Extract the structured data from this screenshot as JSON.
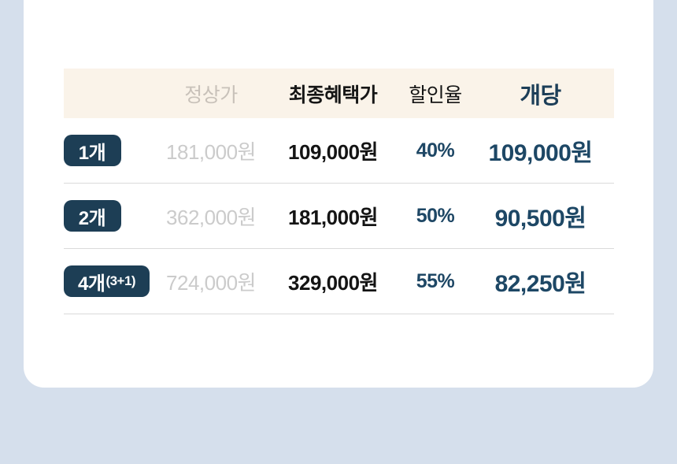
{
  "colors": {
    "page_background": "#d5dfec",
    "card_background": "#ffffff",
    "header_band_background": "#faf3e9",
    "badge_navy": "#1d3e55",
    "accent_navy": "#1e4765",
    "muted_gray": "#cbcbcb",
    "text_black": "#141414"
  },
  "table": {
    "headers": {
      "regular_price": "정상가",
      "final_benefit_price": "최종혜택가",
      "discount_rate": "할인율",
      "per_unit": "개당"
    },
    "rows": [
      {
        "qty": "1개",
        "qty_note": "",
        "regular_price": "181,000원",
        "final_price": "109,000원",
        "discount": "40%",
        "per_unit_price": "109,000원"
      },
      {
        "qty": "2개",
        "qty_note": "",
        "regular_price": "362,000원",
        "final_price": "181,000원",
        "discount": "50%",
        "per_unit_price": "90,500원"
      },
      {
        "qty": "4개",
        "qty_note": "(3+1)",
        "regular_price": "724,000원",
        "final_price": "329,000원",
        "discount": "55%",
        "per_unit_price": "82,250원"
      }
    ]
  }
}
